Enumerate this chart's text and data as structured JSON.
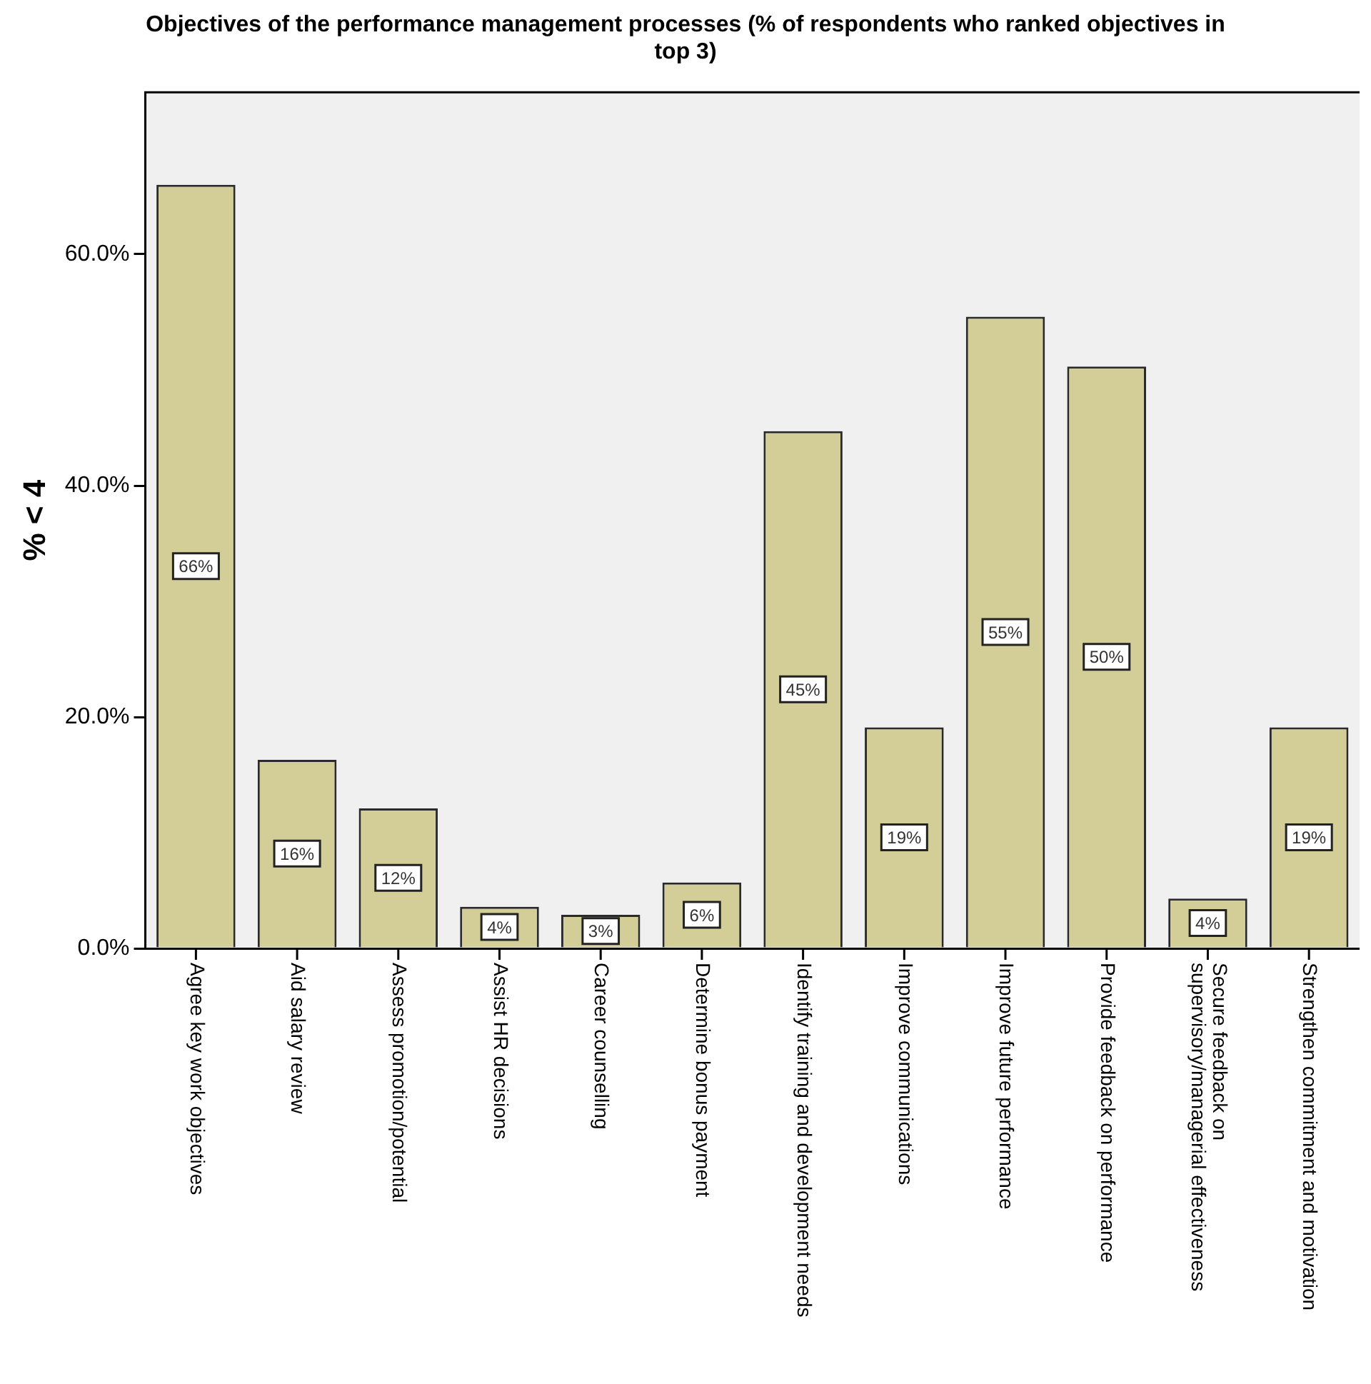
{
  "chart_data": {
    "type": "bar",
    "title": "Objectives of the performance management processes (% of respondents who ranked objectives in top 3)",
    "ylabel": "% < 4",
    "categories": [
      "Agree key work objectives",
      "Aid salary review",
      "Assess promotion/potential",
      "Assist HR decisions",
      "Career counselling",
      "Determine bonus payment",
      "Identify training and development needs",
      "Improve communications",
      "Improve future performance",
      "Provide feedback on performance",
      "Secure feedback on supervisory/managerial effectiveness",
      "Strengthen commitment and motivation"
    ],
    "values": [
      66,
      16.3,
      12.1,
      3.6,
      2.9,
      5.7,
      44.7,
      19.1,
      54.6,
      50.3,
      4.3,
      19.1
    ],
    "value_labels": [
      "66%",
      "16%",
      "12%",
      "4%",
      "3%",
      "6%",
      "45%",
      "19%",
      "55%",
      "50%",
      "4%",
      "19%"
    ],
    "color": "#d3ce97",
    "ylim": [
      0,
      74
    ],
    "yticks": [
      {
        "value": 0,
        "label": "0.0%"
      },
      {
        "value": 20,
        "label": "20.0%"
      },
      {
        "value": 40,
        "label": "40.0%"
      },
      {
        "value": 60,
        "label": "60.0%"
      }
    ],
    "grid": false,
    "legend": false
  }
}
